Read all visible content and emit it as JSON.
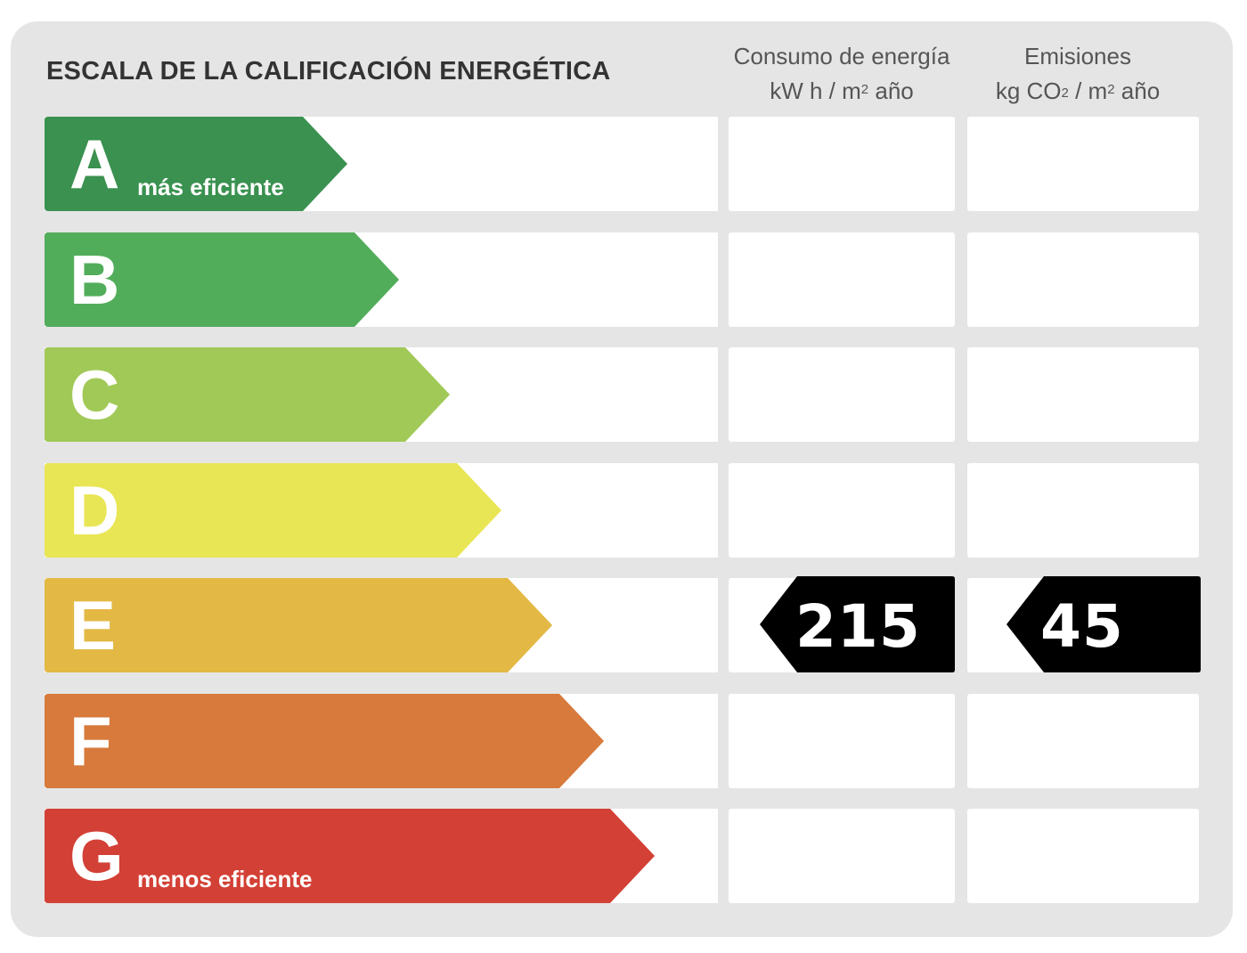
{
  "title": "ESCALA DE LA CALIFICACIÓN ENERGÉTICA",
  "columns": {
    "energy": {
      "line1": "Consumo de energía",
      "line2_pre": "kW h  / m",
      "line2_sup": "2",
      "line2_post": " año"
    },
    "emissions": {
      "line1": "Emisiones",
      "line2_pre": "kg CO",
      "line2_sub": "2",
      "line2_mid": "  / m",
      "line2_sup": "2",
      "line2_post": " año"
    }
  },
  "chart_data": {
    "type": "table",
    "title": "ESCALA DE LA CALIFICACIÓN ENERGÉTICA",
    "classes": [
      {
        "letter": "A",
        "label": "más eficiente",
        "color": "#3a9150"
      },
      {
        "letter": "B",
        "label": "",
        "color": "#52ad5a"
      },
      {
        "letter": "C",
        "label": "",
        "color": "#a1c957"
      },
      {
        "letter": "D",
        "label": "",
        "color": "#e9e655"
      },
      {
        "letter": "E",
        "label": "",
        "color": "#e3b845"
      },
      {
        "letter": "F",
        "label": "",
        "color": "#d77a3b"
      },
      {
        "letter": "G",
        "label": "menos eficiente",
        "color": "#d34035"
      }
    ],
    "rating": {
      "class": "E",
      "energy_consumption": {
        "value": 215,
        "unit": "kW h / m2 año"
      },
      "emissions": {
        "value": 45,
        "unit": "kg CO2 / m2 año"
      }
    }
  }
}
